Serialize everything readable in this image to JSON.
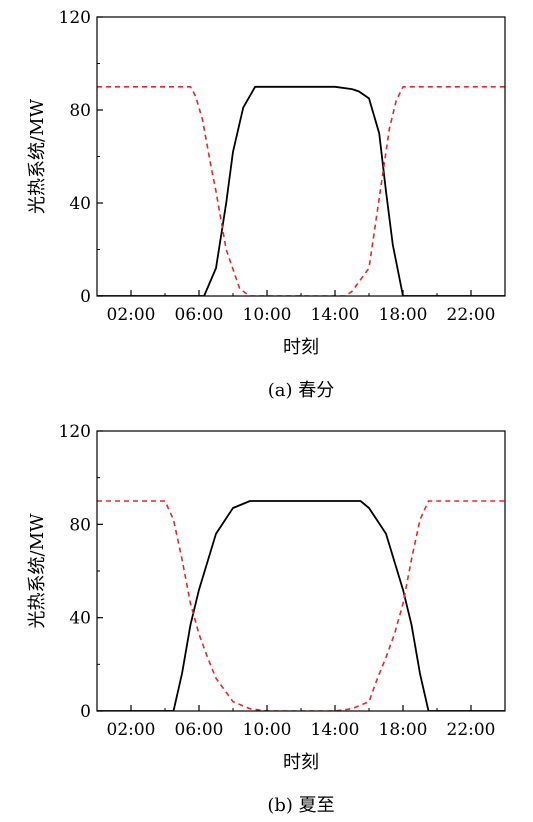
{
  "chart_data": [
    {
      "type": "line",
      "caption": "(a) 春分",
      "xlabel": "时刻",
      "ylabel": "光热系统/MW",
      "xlim": [
        0,
        24
      ],
      "ylim": [
        0,
        120
      ],
      "xticks": [
        "02:00",
        "06:00",
        "10:00",
        "14:00",
        "18:00",
        "22:00"
      ],
      "yticks": [
        "0",
        "40",
        "80",
        "120"
      ],
      "grid": false,
      "series": [
        {
          "style": "solid",
          "color": "#000000",
          "x": [
            0,
            6.3,
            7.0,
            7.6,
            8.0,
            8.6,
            9.3,
            10.0,
            10.6,
            11,
            12,
            13,
            14,
            15,
            15.4,
            16.0,
            16.6,
            17.0,
            17.4,
            18.0,
            18.6,
            24
          ],
          "y": [
            0,
            0,
            12,
            40,
            62,
            81,
            90,
            90,
            90,
            90,
            90,
            90,
            90,
            89,
            88,
            85,
            70,
            45,
            22,
            0,
            0,
            0
          ]
        },
        {
          "style": "dashed",
          "color": "#e8262a",
          "x": [
            0,
            5.0,
            5.5,
            5.8,
            6.2,
            6.7,
            7.0,
            7.6,
            8.4,
            9.0,
            10,
            11,
            12,
            13,
            14,
            14.6,
            15.0,
            16.0,
            16.4,
            16.8,
            17.2,
            17.6,
            18.0,
            24
          ],
          "y": [
            90,
            90,
            90,
            86,
            76,
            56,
            45,
            20,
            3,
            0,
            0,
            0,
            0,
            0,
            0,
            0,
            2,
            12,
            32,
            52,
            72,
            84,
            90,
            90
          ]
        }
      ]
    },
    {
      "type": "line",
      "caption": "(b) 夏至",
      "xlabel": "时刻",
      "ylabel": "光热系统/MW",
      "xlim": [
        0,
        24
      ],
      "ylim": [
        0,
        120
      ],
      "xticks": [
        "02:00",
        "06:00",
        "10:00",
        "14:00",
        "18:00",
        "22:00"
      ],
      "yticks": [
        "0",
        "40",
        "80",
        "120"
      ],
      "grid": false,
      "series": [
        {
          "style": "solid",
          "color": "#000000",
          "x": [
            0,
            4.5,
            5.0,
            5.5,
            6.0,
            7.0,
            8.0,
            9.0,
            10.0,
            11,
            12,
            13,
            14,
            15.5,
            16.0,
            17.0,
            18.0,
            18.5,
            19.0,
            19.5,
            24
          ],
          "y": [
            0,
            0,
            16,
            37,
            52,
            76,
            87,
            90,
            90,
            90,
            90,
            90,
            90,
            90,
            87,
            76,
            52,
            37,
            16,
            0,
            0
          ]
        },
        {
          "style": "dashed",
          "color": "#e8262a",
          "x": [
            0,
            4.0,
            4.5,
            5.0,
            5.5,
            6.0,
            6.5,
            7.0,
            8.0,
            9.0,
            10,
            12,
            14,
            15.0,
            16.0,
            16.5,
            17.0,
            17.5,
            18.0,
            18.5,
            19.0,
            19.5,
            20.0,
            24
          ],
          "y": [
            90,
            90,
            82,
            65,
            46,
            33,
            23,
            14,
            4,
            1,
            0,
            0,
            0,
            1,
            4,
            14,
            23,
            33,
            46,
            65,
            82,
            90,
            90,
            90
          ]
        }
      ]
    }
  ]
}
